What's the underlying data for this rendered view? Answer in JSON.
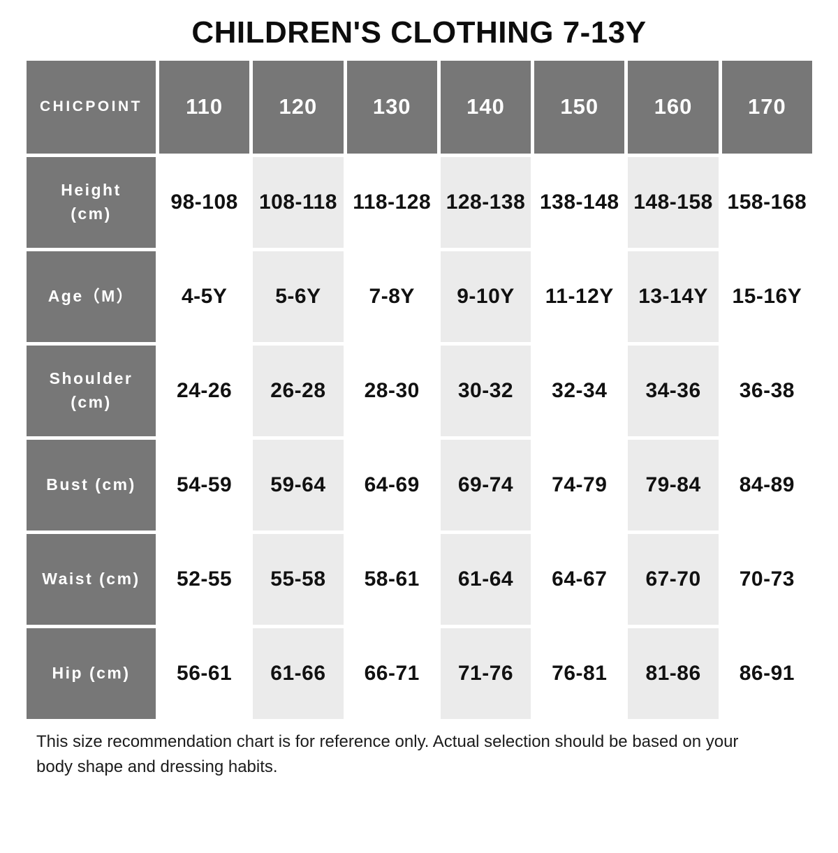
{
  "title": "CHILDREN'S CLOTHING 7-13Y",
  "chart_data": {
    "type": "table",
    "title": "CHILDREN'S CLOTHING 7-13Y",
    "corner_label": "CHICPOINT",
    "columns": [
      "110",
      "120",
      "130",
      "140",
      "150",
      "160",
      "170"
    ],
    "rows": [
      {
        "label": "Height (cm)",
        "values": [
          "98-108",
          "108-118",
          "118-128",
          "128-138",
          "138-148",
          "148-158",
          "158-168"
        ]
      },
      {
        "label": "Age（M）",
        "values": [
          "4-5Y",
          "5-6Y",
          "7-8Y",
          "9-10Y",
          "11-12Y",
          "13-14Y",
          "15-16Y"
        ]
      },
      {
        "label": "Shoulder (cm)",
        "values": [
          "24-26",
          "26-28",
          "28-30",
          "30-32",
          "32-34",
          "34-36",
          "36-38"
        ]
      },
      {
        "label": "Bust (cm)",
        "values": [
          "54-59",
          "59-64",
          "64-69",
          "69-74",
          "74-79",
          "79-84",
          "84-89"
        ]
      },
      {
        "label": "Waist (cm)",
        "values": [
          "52-55",
          "55-58",
          "58-61",
          "61-64",
          "64-67",
          "67-70",
          "70-73"
        ]
      },
      {
        "label": "Hip (cm)",
        "values": [
          "56-61",
          "61-66",
          "66-71",
          "71-76",
          "76-81",
          "81-86",
          "86-91"
        ]
      }
    ],
    "layout": {
      "header_row_shaded": true,
      "label_column_shaded": true,
      "alternating_shaded_columns": [
        "120",
        "140",
        "160"
      ]
    }
  },
  "footnote": {
    "line1": "This size recommendation chart is for reference only. Actual selection should be based on your",
    "line2": "body shape and dressing habits."
  },
  "colors": {
    "header_bg": "#777777",
    "header_text": "#ffffff",
    "alt_cell_bg": "#ebebeb",
    "cell_bg": "#ffffff",
    "cell_text": "#111111",
    "title_text": "#0d0d0d"
  }
}
